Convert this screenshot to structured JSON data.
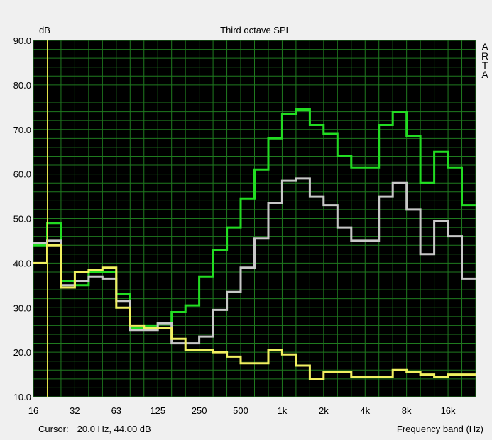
{
  "chart_data": {
    "type": "line",
    "title": "Third octave SPL",
    "ylabel": "dB",
    "xlabel": "Frequency band (Hz)",
    "xscale": "log",
    "xlim": [
      16,
      20000
    ],
    "ylim": [
      10,
      90
    ],
    "grid": true,
    "ytick_labels": [
      "90.0",
      "80.0",
      "70.0",
      "60.0",
      "50.0",
      "40.0",
      "30.0",
      "20.0",
      "10.0"
    ],
    "xtick_labels": [
      "16",
      "32",
      "63",
      "125",
      "250",
      "500",
      "1k",
      "2k",
      "4k",
      "8k",
      "16k"
    ],
    "x": [
      16,
      20,
      25,
      31.5,
      40,
      50,
      63,
      80,
      100,
      125,
      160,
      200,
      250,
      315,
      400,
      500,
      630,
      800,
      1000,
      1250,
      1600,
      2000,
      2500,
      3150,
      4000,
      5000,
      6300,
      8000,
      10000,
      12500,
      16000,
      20000
    ],
    "series": [
      {
        "color": "#22dd22",
        "values": [
          44,
          49,
          36,
          35,
          38,
          38,
          33,
          25.5,
          26,
          26.5,
          29,
          30.5,
          37,
          43,
          48,
          54.5,
          61,
          68,
          73.5,
          74.5,
          71,
          69,
          64,
          61.5,
          61.5,
          71,
          74,
          68.5,
          58,
          65,
          61.5,
          53
        ]
      },
      {
        "color": "#c8c8c8",
        "values": [
          44.5,
          45,
          35,
          36,
          37,
          36.5,
          31.5,
          25,
          25,
          26.5,
          22,
          22,
          23.5,
          29.5,
          33.5,
          39,
          45.5,
          53.5,
          58.5,
          59,
          55,
          53,
          48,
          45,
          45,
          55,
          58,
          52,
          42,
          49.5,
          46,
          36.5
        ]
      },
      {
        "color": "#f0f060",
        "values": [
          40,
          44,
          34.5,
          38,
          38.5,
          39,
          30,
          26,
          25.5,
          25.5,
          23,
          20.5,
          20.5,
          20,
          19,
          17.5,
          17.5,
          20.5,
          19.5,
          17,
          14,
          15.5,
          15.5,
          14.5,
          14.5,
          14.5,
          16,
          15.5,
          15,
          14.5,
          15,
          15
        ]
      }
    ],
    "cursor_marker_x": 20
  },
  "status": {
    "cursor_label": "Cursor:",
    "cursor_value": "20.0 Hz, 44.00 dB"
  },
  "brand_letters": [
    "A",
    "R",
    "T",
    "A"
  ]
}
